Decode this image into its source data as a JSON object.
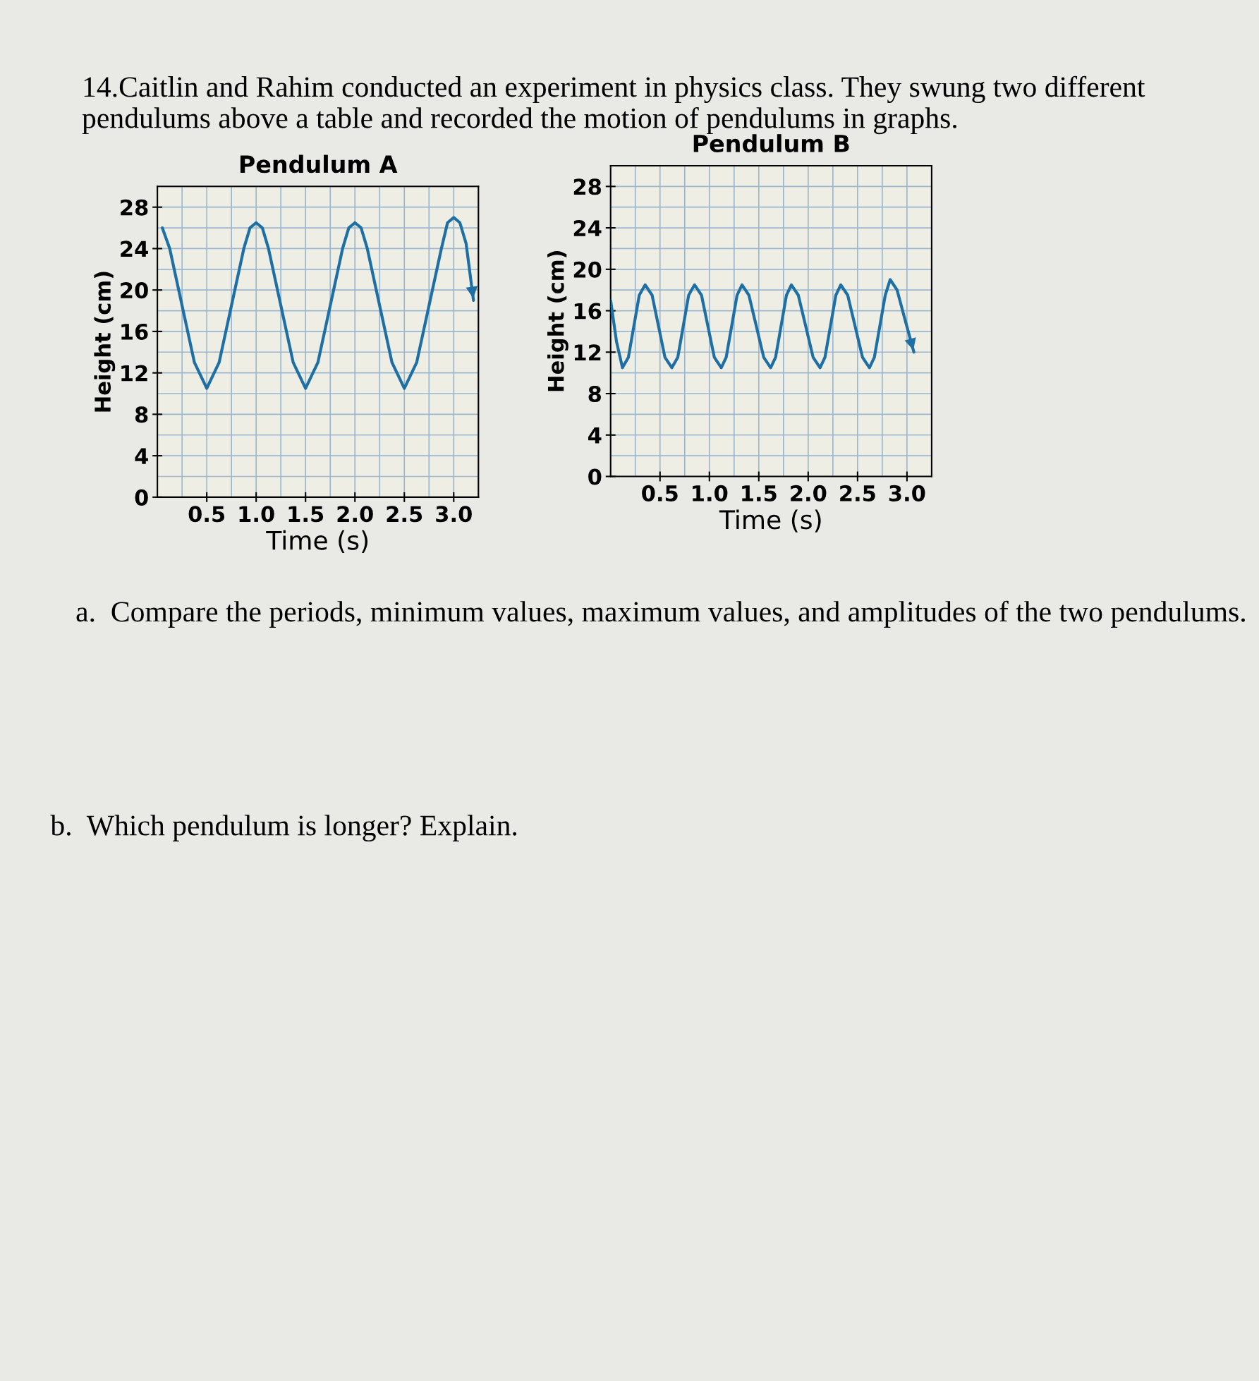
{
  "chart_data": [
    {
      "type": "line",
      "title": "Pendulum A",
      "xlabel": "Time (s)",
      "ylabel": "Height (cm)",
      "xlim": [
        0,
        3.25
      ],
      "ylim": [
        0,
        30
      ],
      "xticks": [
        {
          "value": 0.5,
          "label": "0.5"
        },
        {
          "value": 1.0,
          "label": "1.0"
        },
        {
          "value": 1.5,
          "label": "1.5"
        },
        {
          "value": 2.0,
          "label": "2.0"
        },
        {
          "value": 2.5,
          "label": "2.5"
        },
        {
          "value": 3.0,
          "label": "3.0"
        }
      ],
      "yticks": [
        0,
        4,
        8,
        12,
        16,
        20,
        24,
        28
      ],
      "grid": true,
      "marker": "none",
      "line_style": "solid",
      "legend": false,
      "series": [
        {
          "color": "#1d6fa5",
          "x": [
            0.05,
            0.125,
            0.25,
            0.375,
            0.5,
            0.625,
            0.75,
            0.875,
            0.9375,
            1.0,
            1.0625,
            1.125,
            1.25,
            1.375,
            1.5,
            1.625,
            1.75,
            1.875,
            1.9375,
            2.0,
            2.0625,
            2.125,
            2.25,
            2.375,
            2.5,
            2.625,
            2.75,
            2.875,
            2.9375,
            3.0,
            3.0625,
            3.125,
            3.2
          ],
          "values": [
            26,
            24,
            18.5,
            13,
            10.5,
            13,
            18.5,
            24,
            26,
            26.5,
            26,
            24,
            18.5,
            13,
            10.5,
            13,
            18.5,
            24,
            26,
            26.5,
            26,
            24,
            18.5,
            13,
            10.5,
            13,
            18.5,
            24,
            26.5,
            27,
            26.5,
            24.5,
            19
          ]
        }
      ],
      "annotations": [
        "14.Caitlin and Rahim conducted an experiment in physics class. They swung two different pendulums above a table and recorded the motion of pendulums in graphs.",
        "a.  Compare the periods, minimum values, maximum values, and amplitudes of the two pendulums.",
        "b.  Which pendulum is longer? Explain."
      ]
    },
    {
      "type": "line",
      "title": "Pendulum B",
      "xlabel": "Time (s)",
      "ylabel": "Height (cm)",
      "xlim": [
        0,
        3.25
      ],
      "ylim": [
        0,
        30
      ],
      "xticks": [
        {
          "value": 0.5,
          "label": "0.5"
        },
        {
          "value": 1.0,
          "label": "1.0"
        },
        {
          "value": 1.5,
          "label": "1.5"
        },
        {
          "value": 2.0,
          "label": "2.0"
        },
        {
          "value": 2.5,
          "label": "2.5"
        },
        {
          "value": 3.0,
          "label": "3.0"
        }
      ],
      "yticks": [
        0,
        4,
        8,
        12,
        16,
        20,
        24,
        28
      ],
      "grid": true,
      "marker": "none",
      "line_style": "solid",
      "legend": false,
      "series": [
        {
          "color": "#1d6fa5",
          "x": [
            0,
            0.06,
            0.12,
            0.18,
            0.235,
            0.29,
            0.35,
            0.42,
            0.485,
            0.55,
            0.62,
            0.68,
            0.735,
            0.79,
            0.85,
            0.92,
            0.985,
            1.05,
            1.12,
            1.17,
            1.225,
            1.28,
            1.33,
            1.4,
            1.475,
            1.55,
            1.62,
            1.67,
            1.725,
            1.78,
            1.83,
            1.9,
            1.975,
            2.05,
            2.12,
            2.17,
            2.225,
            2.28,
            2.33,
            2.4,
            2.475,
            2.55,
            2.62,
            2.67,
            2.725,
            2.78,
            2.83,
            2.9,
            2.97,
            3.07
          ],
          "values": [
            17,
            13,
            10.5,
            11.5,
            14.5,
            17.5,
            18.5,
            17.5,
            14.5,
            11.5,
            10.5,
            11.5,
            14.5,
            17.5,
            18.5,
            17.5,
            14.5,
            11.5,
            10.5,
            11.5,
            14.5,
            17.5,
            18.5,
            17.5,
            14.5,
            11.5,
            10.5,
            11.5,
            14.5,
            17.5,
            18.5,
            17.5,
            14.5,
            11.5,
            10.5,
            11.5,
            14.5,
            17.5,
            18.5,
            17.5,
            14.5,
            11.5,
            10.5,
            11.5,
            14.5,
            17.5,
            19,
            18,
            15.5,
            12
          ]
        }
      ]
    }
  ]
}
